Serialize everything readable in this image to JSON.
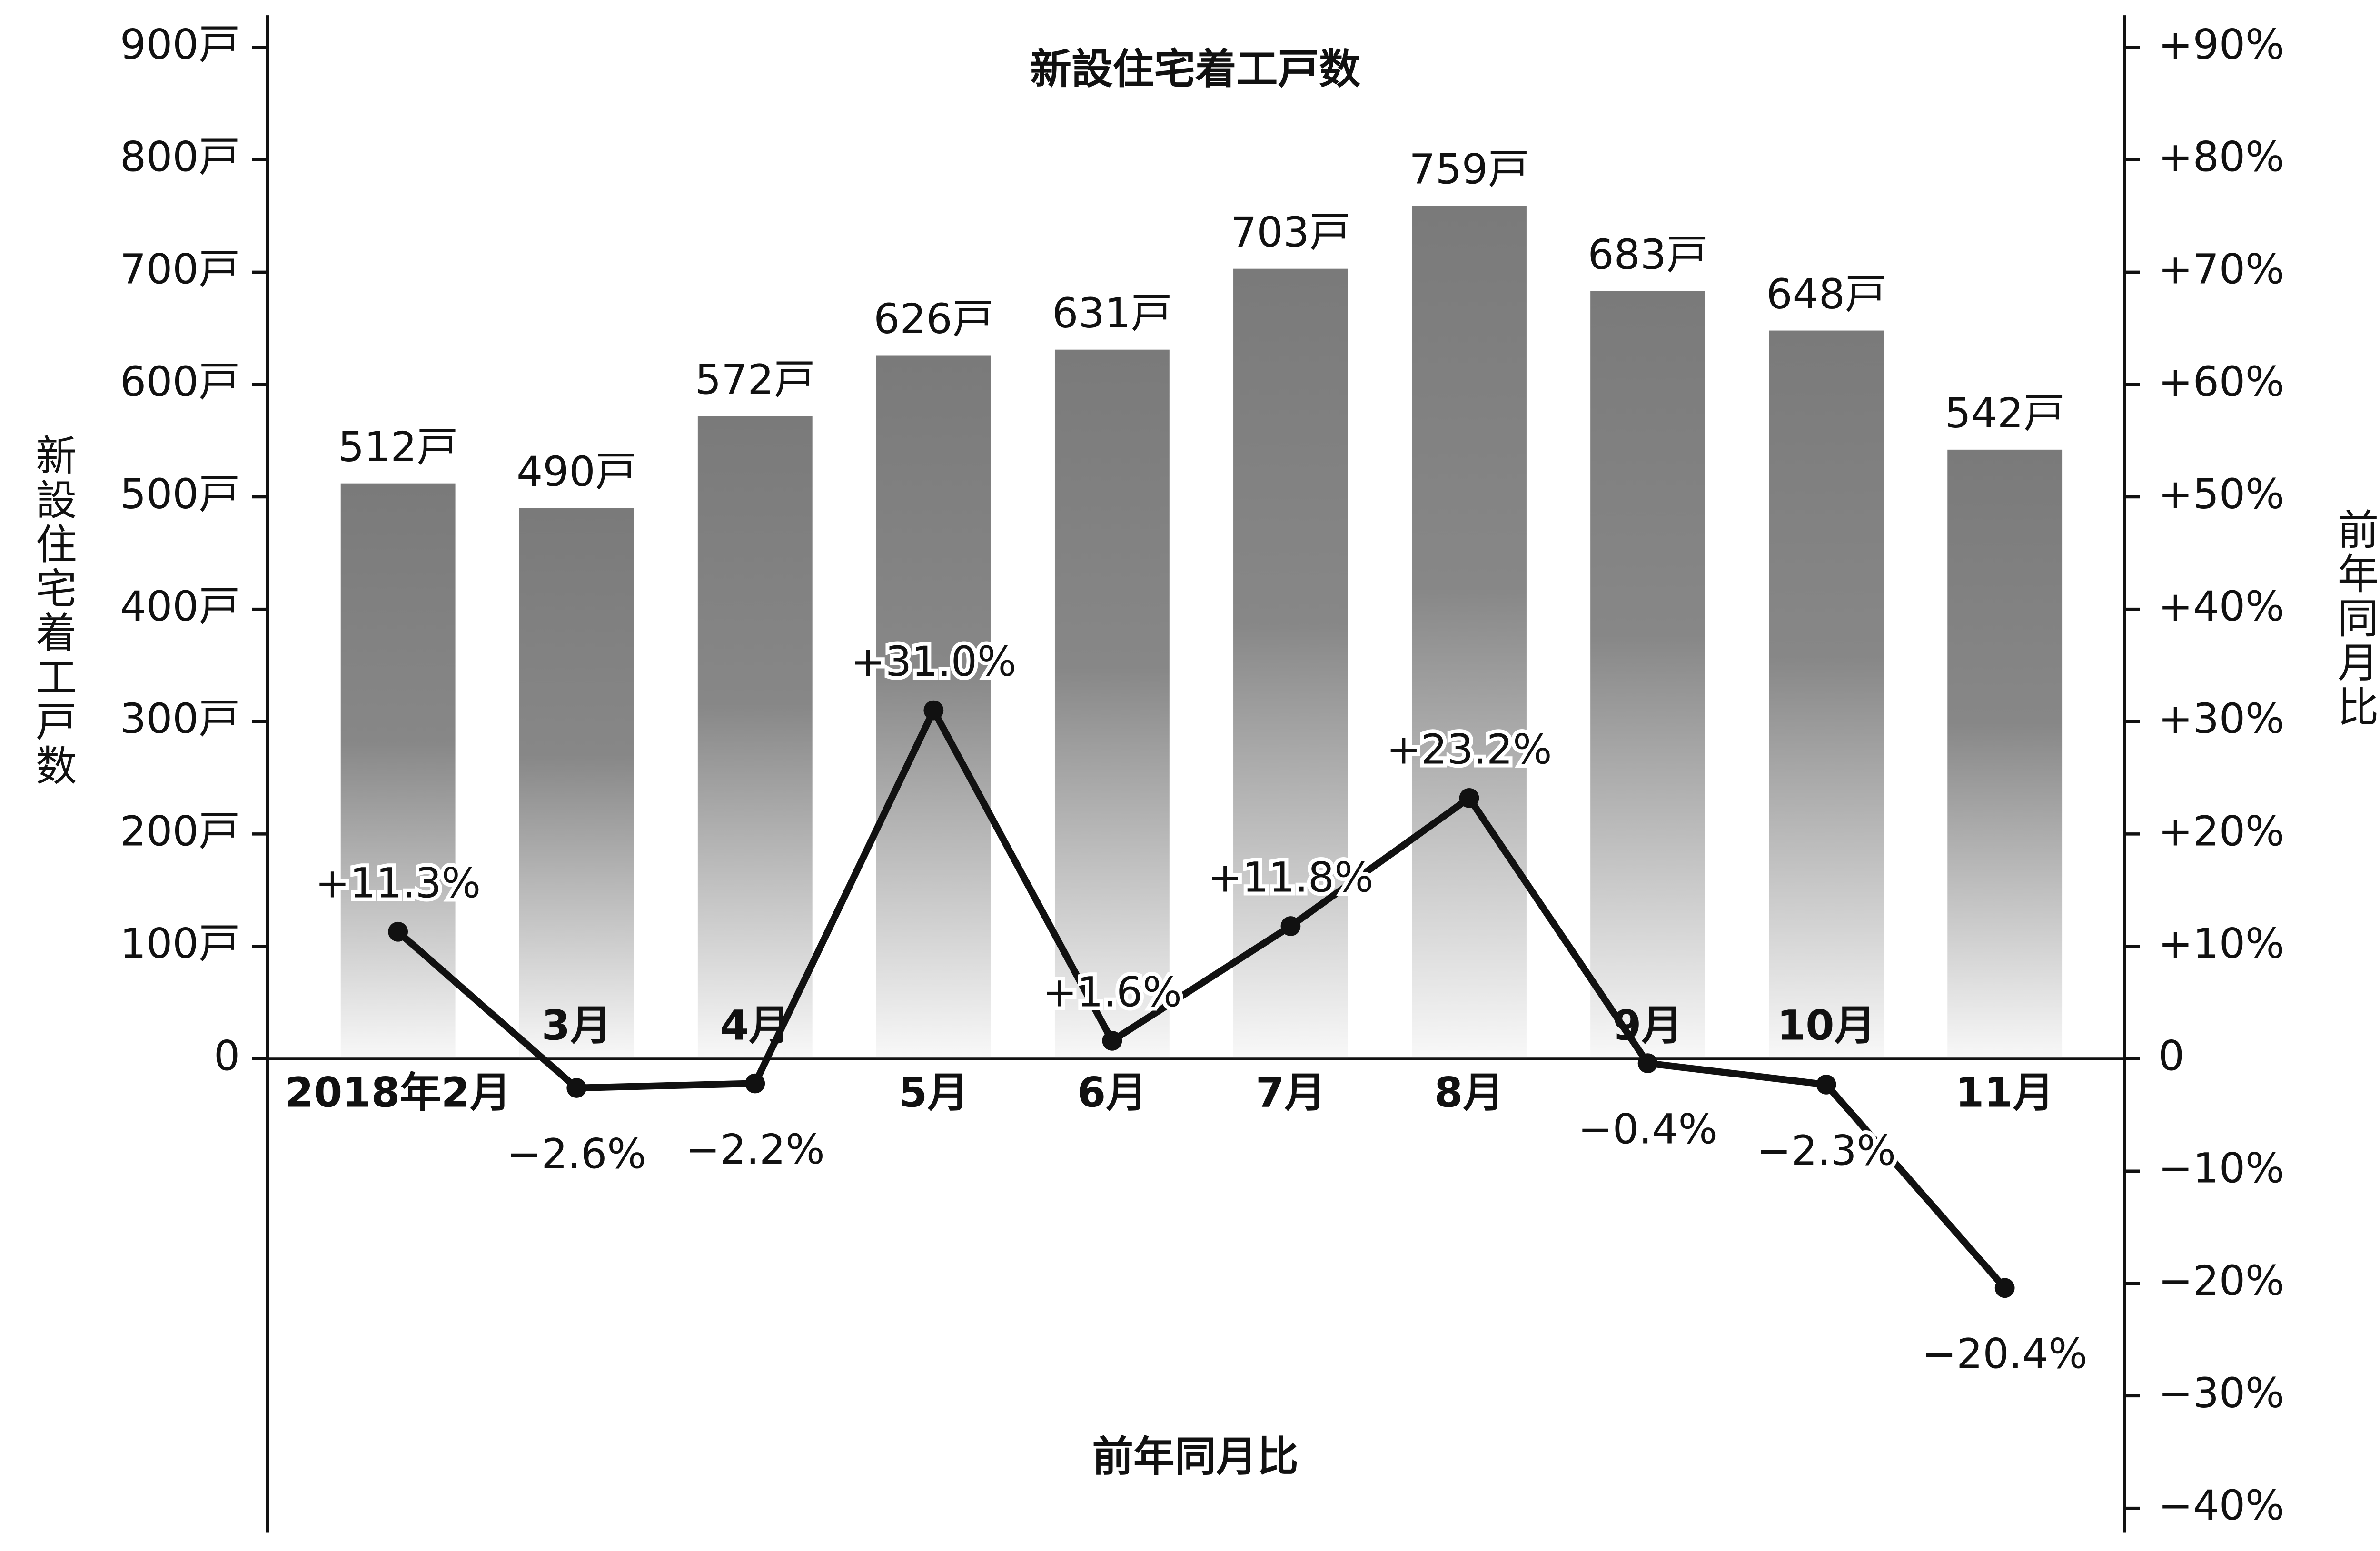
{
  "chart_data": {
    "type": "bar",
    "title": "新設住宅着工戸数",
    "y_label": "新設住宅着工戸数",
    "y2_label": "前年同月比",
    "annotation": "前年同月比",
    "categories": [
      "2018年2月",
      "3月",
      "4月",
      "5月",
      "6月",
      "7月",
      "8月",
      "9月",
      "10月",
      "11月"
    ],
    "series": [
      {
        "type": "bar",
        "color": "#7a7a7a",
        "values": [
          512,
          490,
          572,
          626,
          631,
          703,
          759,
          683,
          648,
          542
        ],
        "value_labels": [
          "512戸",
          "490戸",
          "572戸",
          "626戸",
          "631戸",
          "703戸",
          "759戸",
          "683戸",
          "648戸",
          "542戸"
        ]
      },
      {
        "type": "line",
        "axis": "y2",
        "color": "#111111",
        "values": [
          11.3,
          -2.6,
          -2.2,
          31.0,
          1.6,
          11.8,
          23.2,
          -0.4,
          -2.3,
          -20.4
        ],
        "value_labels": [
          "+11.3%",
          "−2.6%",
          "−2.2%",
          "+31.0%",
          "+1.6%",
          "+11.8%",
          "+23.2%",
          "−0.4%",
          "−2.3%",
          "−20.4%"
        ]
      }
    ],
    "ylim": [
      -400,
      900
    ],
    "yticks": [
      {
        "value": 0,
        "label": "0"
      },
      {
        "value": 100,
        "label": "100戸"
      },
      {
        "value": 200,
        "label": "200戸"
      },
      {
        "value": 300,
        "label": "300戸"
      },
      {
        "value": 400,
        "label": "400戸"
      },
      {
        "value": 500,
        "label": "500戸"
      },
      {
        "value": 600,
        "label": "600戸"
      },
      {
        "value": 700,
        "label": "700戸"
      },
      {
        "value": 800,
        "label": "800戸"
      },
      {
        "value": 900,
        "label": "900戸"
      }
    ],
    "y2lim": [
      -40,
      90
    ],
    "y2ticks": [
      {
        "value": -40,
        "label": "−40%"
      },
      {
        "value": -30,
        "label": "−30%"
      },
      {
        "value": -20,
        "label": "−20%"
      },
      {
        "value": -10,
        "label": "−10%"
      },
      0,
      {
        "value": 10,
        "label": "+10%"
      },
      {
        "value": 20,
        "label": "+20%"
      },
      {
        "value": 30,
        "label": "+30%"
      },
      {
        "value": 40,
        "label": "+40%"
      },
      {
        "value": 50,
        "label": "+50%"
      },
      {
        "value": 60,
        "label": "+60%"
      },
      {
        "value": 70,
        "label": "+70%"
      },
      {
        "value": 80,
        "label": "+80%"
      },
      {
        "value": 90,
        "label": "+90%"
      }
    ]
  }
}
